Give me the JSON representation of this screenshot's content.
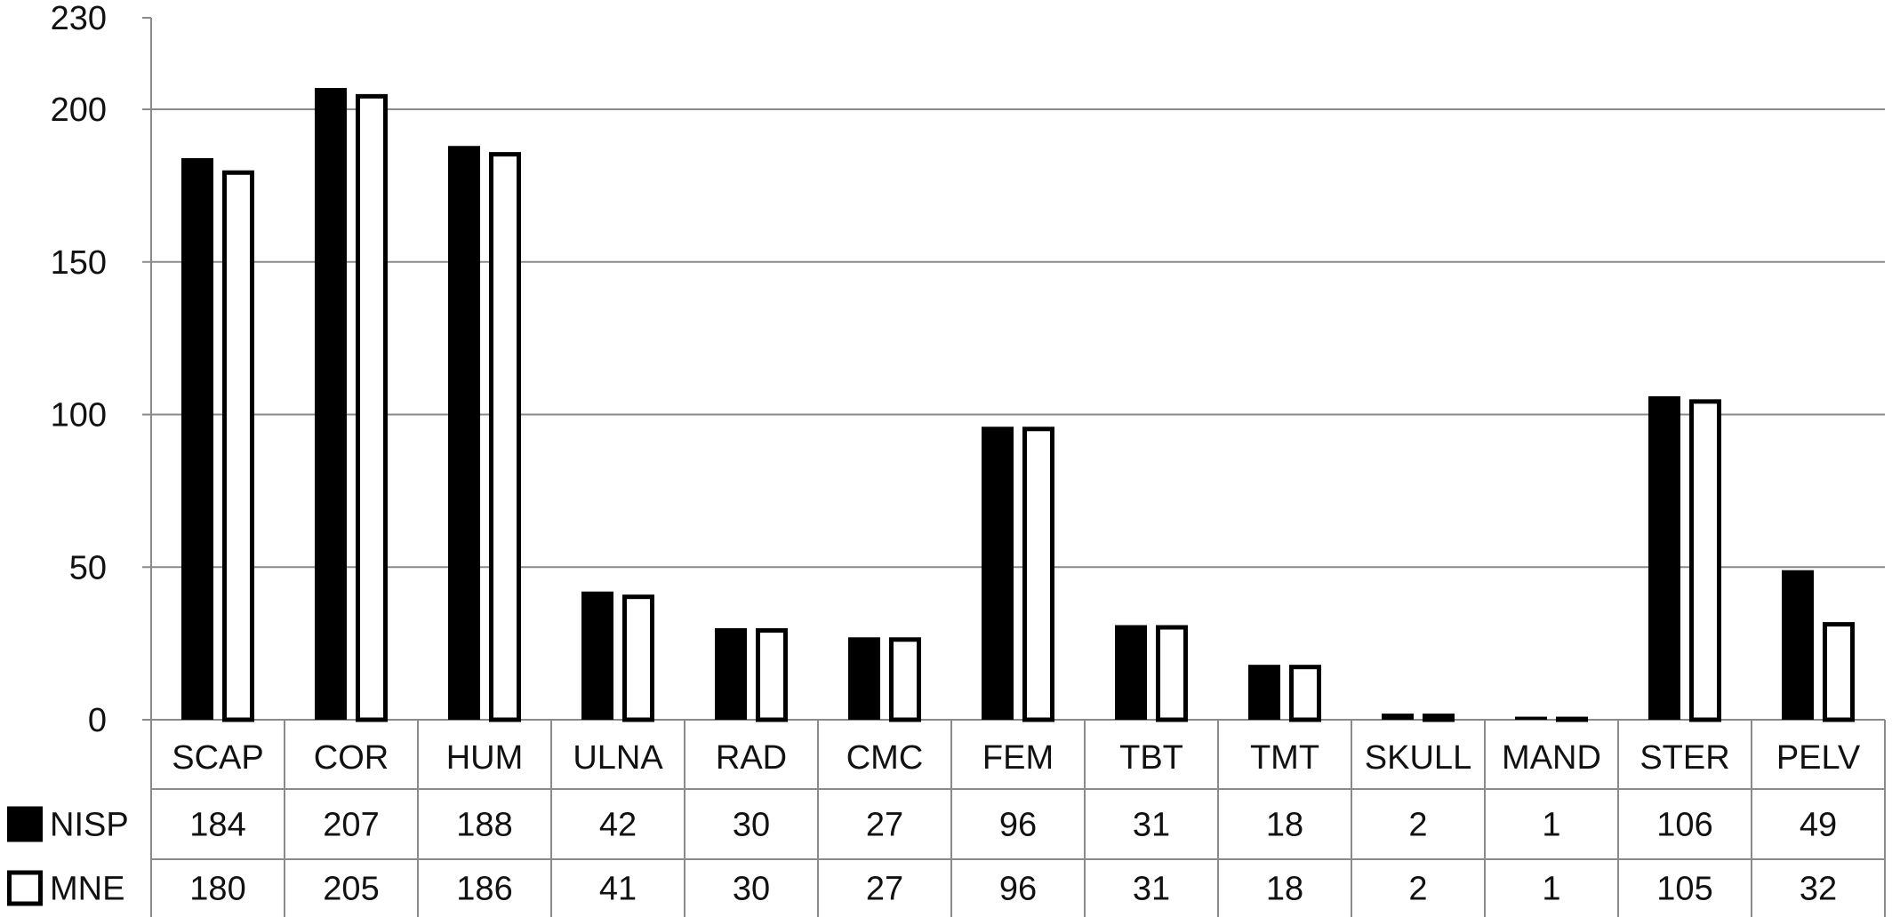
{
  "chart_data": {
    "type": "bar",
    "title": "",
    "xlabel": "",
    "ylabel": "",
    "ylim": [
      0,
      230
    ],
    "yticks": [
      0,
      50,
      100,
      150,
      200,
      230
    ],
    "grid": true,
    "categories": [
      "SCAP",
      "COR",
      "HUM",
      "ULNA",
      "RAD",
      "CMC",
      "FEM",
      "TBT",
      "TMT",
      "SKULL",
      "MAND",
      "STER",
      "PELV"
    ],
    "series": [
      {
        "name": "NISP",
        "fill": "#000000",
        "values": [
          184,
          207,
          188,
          42,
          30,
          27,
          96,
          31,
          18,
          2,
          1,
          106,
          49
        ]
      },
      {
        "name": "MNE",
        "fill": "#ffffff",
        "values": [
          180,
          205,
          186,
          41,
          30,
          27,
          96,
          31,
          18,
          2,
          1,
          105,
          32
        ]
      }
    ],
    "data_table": true
  }
}
